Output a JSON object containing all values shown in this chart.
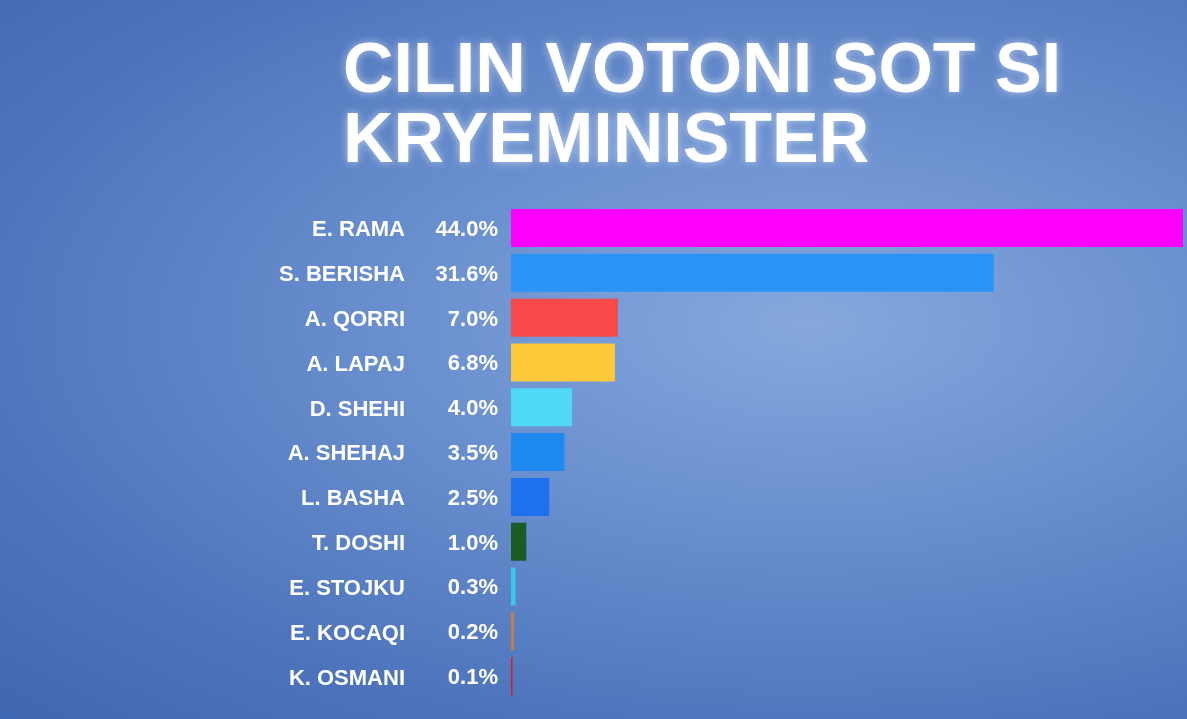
{
  "chart_data": {
    "type": "bar",
    "orientation": "horizontal",
    "title": "CILIN VOTONI SOT SI KRYEMINISTER",
    "categories": [
      "E. RAMA",
      "S. BERISHA",
      "A. QORRI",
      "A. LAPAJ",
      "D. SHEHI",
      "A. SHEHAJ",
      "L. BASHA",
      "T. DOSHI",
      "E. STOJKU",
      "E. KOCAQI",
      "K. OSMANI"
    ],
    "values": [
      44.0,
      31.6,
      7.0,
      6.8,
      4.0,
      3.5,
      2.5,
      1.0,
      0.3,
      0.2,
      0.1
    ],
    "value_labels": [
      "44.0%",
      "31.6%",
      "7.0%",
      "6.8%",
      "4.0%",
      "3.5%",
      "2.5%",
      "1.0%",
      "0.3%",
      "0.2%",
      "0.1%"
    ],
    "colors": [
      "#ff00ff",
      "#2b93f5",
      "#f84848",
      "#fdc83a",
      "#4fd8f8",
      "#1e8af0",
      "#1e70ee",
      "#1a5c24",
      "#3cc8e8",
      "#c08048",
      "#d81c20"
    ]
  }
}
